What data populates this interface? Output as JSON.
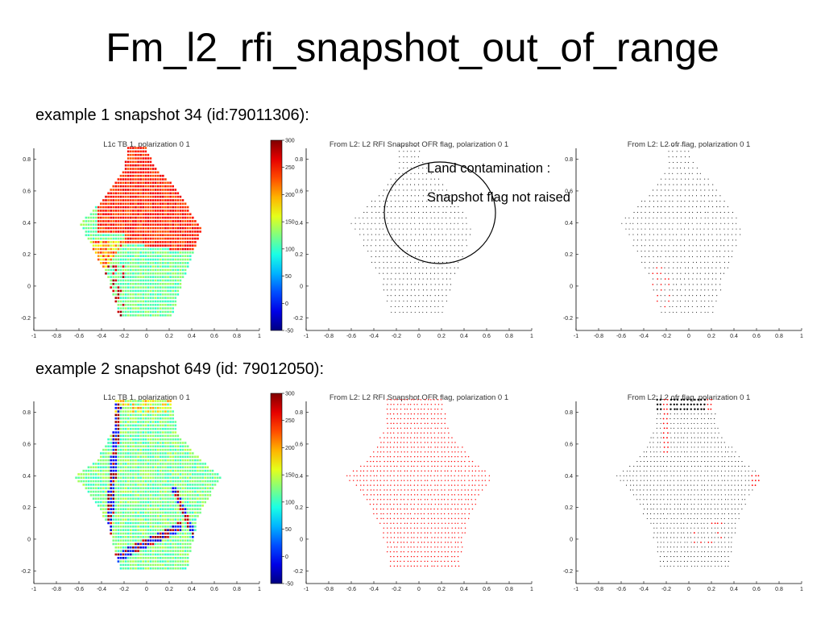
{
  "title": "Fm_l2_rfi_snapshot_out_of_range",
  "examples": [
    {
      "label": "example 1 snapshot 34 (id:79011306):",
      "panels": [
        {
          "title": "L1c TB 1, polarization 0 1",
          "kind": "tb",
          "variant": 1
        },
        {
          "title": "From L2: L2 RFI Snapshot OFR flag, polarization 0 1",
          "kind": "flag",
          "variant": 1
        },
        {
          "title": "From L2: L2 ofr flag, polarization 0 1",
          "kind": "ofr",
          "variant": 1
        }
      ]
    },
    {
      "label": "example 2 snapshot 649 (id: 79012050):",
      "panels": [
        {
          "title": "L1c TB 1, polarization 0 1",
          "kind": "tb",
          "variant": 2
        },
        {
          "title": "From L2: L2 RFI Snapshot OFR flag, polarization 0 1",
          "kind": "flag",
          "variant": 2
        },
        {
          "title": "From L2: L2 ofr flag, polarization 0 1",
          "kind": "ofr",
          "variant": 2
        }
      ]
    }
  ],
  "axes": {
    "x_ticks": [
      "-1",
      "-0.8",
      "-0.6",
      "-0.4",
      "-0.2",
      "0",
      "0.2",
      "0.4",
      "0.6",
      "0.8",
      "1"
    ],
    "y_ticks": [
      "0.8",
      "0.6",
      "0.4",
      "0.2",
      "0",
      "-0.2"
    ],
    "colorbar_ticks": [
      "300",
      "250",
      "200",
      "150",
      "100",
      "50",
      "0",
      "-50"
    ],
    "xlim": [
      -1,
      1
    ],
    "ylim": [
      -0.28,
      0.92
    ],
    "colorbar_range": [
      -50,
      300
    ]
  },
  "annotation": {
    "line1": "Land contamination :",
    "line2": "Snapshot flag not raised"
  },
  "colors": {
    "flag_red": "#ff0000",
    "dot_black": "#000000"
  }
}
